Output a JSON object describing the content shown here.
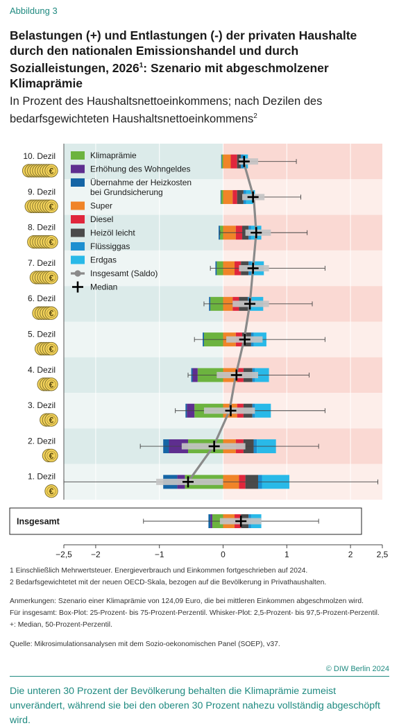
{
  "header": {
    "figure_label": "Abbildung 3",
    "title_main": "Belastungen (+) und Entlastungen (-) der privaten Haushalte durch den nationalen Emissionshandel und durch Sozialleistungen, 2026",
    "title_sup": "1",
    "title_end": ": Szenario mit abgeschmolzener Klimaprämie",
    "subtitle_main": "In Prozent des Haushaltsnettoeinkommens; nach Dezilen des bedarfsgewichteten Haushaltsnettoeinkommens",
    "subtitle_sup": "2"
  },
  "colors": {
    "klimapraemie": "#6cb33f",
    "wohngeld": "#5e2e8f",
    "heizkosten": "#1565a5",
    "super": "#f08428",
    "diesel": "#e0263c",
    "heizoel": "#4a4a4a",
    "fluessiggas": "#1c8fd0",
    "erdgas": "#29b9e8",
    "saldo_line": "#8a8a8a",
    "box": "#c4c4c4",
    "bg_neg_a": "#dcebea",
    "bg_neg_b": "#eef5f4",
    "bg_pos_a": "#fad9d3",
    "bg_pos_b": "#fdeeea"
  },
  "chart_data": {
    "type": "bar",
    "stacked": true,
    "orientation": "horizontal",
    "xlim": [
      -2.5,
      2.5
    ],
    "xticks": [
      -2.5,
      -2,
      -1,
      0,
      1,
      2,
      2.5
    ],
    "xtick_labels": [
      "−2,5",
      "−2",
      "−1",
      "0",
      "1",
      "2",
      "2,5"
    ],
    "categories": [
      "10. Dezil",
      "9. Dezil",
      "8. Dezil",
      "7. Dezil",
      "6. Dezil",
      "5. Dezil",
      "4. Dezil",
      "3. Dezil",
      "2. Dezil",
      "1. Dezil"
    ],
    "total_label": "Insgesamt",
    "coins": [
      10,
      9,
      8,
      7,
      6,
      5,
      4,
      3,
      2,
      1
    ],
    "coin_symbol": "€",
    "series": [
      {
        "key": "klimapraemie",
        "name": "Klimaprämie",
        "values": [
          -0.02,
          -0.03,
          -0.05,
          -0.1,
          -0.2,
          -0.3,
          -0.4,
          -0.45,
          -0.55,
          -0.6
        ],
        "total": -0.17
      },
      {
        "key": "wohngeld",
        "name": "Erhöhung des Wohngeldes",
        "values": [
          0,
          0,
          0,
          0,
          0,
          0,
          -0.08,
          -0.12,
          -0.3,
          -0.12
        ],
        "total": -0.03
      },
      {
        "key": "heizkosten",
        "name": "Übernahme der Heizkosten bei Grundsicherung",
        "values": [
          -0.01,
          -0.01,
          -0.02,
          -0.02,
          -0.02,
          -0.02,
          -0.02,
          -0.02,
          -0.09,
          -0.22
        ],
        "total": -0.03
      },
      {
        "key": "super",
        "name": "Super",
        "values": [
          0.12,
          0.15,
          0.2,
          0.18,
          0.15,
          0.2,
          0.22,
          0.22,
          0.2,
          0.25
        ],
        "total": 0.18
      },
      {
        "key": "diesel",
        "name": "Diesel",
        "values": [
          0.1,
          0.07,
          0.1,
          0.1,
          0.1,
          0.1,
          0.1,
          0.1,
          0.12,
          0.1
        ],
        "total": 0.1
      },
      {
        "key": "heizoel",
        "name": "Heizöl leicht",
        "values": [
          0.06,
          0.1,
          0.1,
          0.12,
          0.14,
          0.14,
          0.14,
          0.14,
          0.16,
          0.2
        ],
        "total": 0.12
      },
      {
        "key": "fluessiggas",
        "name": "Flüssiggas",
        "values": [
          0.04,
          0.04,
          0.04,
          0.04,
          0.04,
          0.04,
          0.04,
          0.04,
          0.05,
          0.06
        ],
        "total": 0.04
      },
      {
        "key": "erdgas",
        "name": "Erdgas",
        "values": [
          0.07,
          0.14,
          0.16,
          0.2,
          0.2,
          0.2,
          0.22,
          0.25,
          0.3,
          0.43
        ],
        "total": 0.16
      }
    ],
    "saldo": {
      "name": "Insgesamt (Saldo)",
      "values": [
        0.32,
        0.48,
        0.52,
        0.47,
        0.42,
        0.33,
        0.2,
        0.1,
        -0.15,
        -0.55
      ],
      "total": 0.28
    },
    "median": {
      "name": "Median",
      "values": [
        0.33,
        0.47,
        0.52,
        0.47,
        0.42,
        0.34,
        0.21,
        0.12,
        -0.14,
        -0.55
      ],
      "total": 0.28
    },
    "box_q25_q75": [
      [
        0.25,
        0.55
      ],
      [
        0.3,
        0.65
      ],
      [
        0.35,
        0.75
      ],
      [
        0.25,
        0.72
      ],
      [
        0.15,
        0.72
      ],
      [
        0.05,
        0.62
      ],
      [
        -0.1,
        0.55
      ],
      [
        -0.3,
        0.5
      ],
      [
        -0.65,
        0.35
      ],
      [
        -1.05,
        0
      ]
    ],
    "whisker_p2_5_p97_5": [
      [
        0.3,
        1.15
      ],
      [
        0.28,
        1.22
      ],
      [
        -0.05,
        1.32
      ],
      [
        -0.2,
        1.6
      ],
      [
        -0.3,
        1.4
      ],
      [
        -0.45,
        1.6
      ],
      [
        -0.55,
        1.35
      ],
      [
        -0.75,
        1.6
      ],
      [
        -1.3,
        1.5
      ],
      [
        -2.5,
        2.43
      ]
    ],
    "total_box": [
      -0.05,
      0.6
    ],
    "total_whisker": [
      -1.25,
      1.5
    ]
  },
  "footnotes": {
    "fn1": "1  Einschließlich Mehrwertsteuer. Energieverbrauch und Einkommen fortgeschrieben auf 2024.",
    "fn2": "2  Bedarfsgewichtetet mit der neuen OECD-Skala, bezogen auf die Bevölkerung in Privathaushalten.",
    "notes1": "Anmerkungen: Szenario einer Klimaprämie von 124,09 Euro, die bei mittleren Einkommen abgeschmolzen wird.",
    "notes2": "Für insgesamt: Box-Plot: 25-Prozent- bis 75-Prozent-Perzentil. Whisker-Plot: 2,5-Prozent- bis 97,5-Prozent-Perzentil.",
    "notes3": "+: Median, 50-Prozent-Perzentil.",
    "source": "Quelle: Mikrosimulationsanalysen mit dem Sozio-oekonomischen Panel (SOEP), v37.",
    "copyright": "© DIW Berlin 2024"
  },
  "conclusion": "Die unteren 30 Prozent der Bevölkerung behalten die Klimaprämie zumeist unverändert, während sie bei den oberen 30 Prozent nahezu vollständig abgeschöpft wird."
}
